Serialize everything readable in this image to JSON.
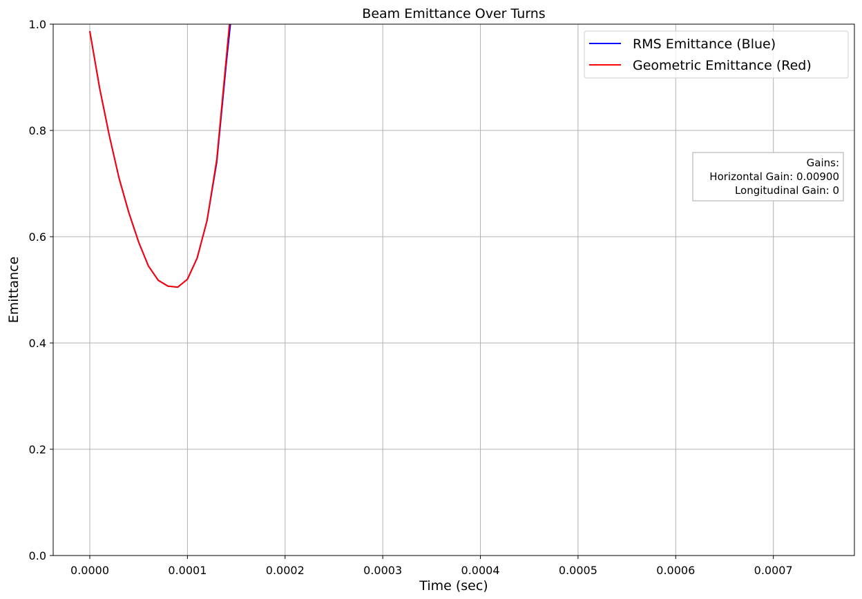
{
  "chart_data": {
    "type": "line",
    "title": "Beam Emittance Over Turns",
    "xlabel": "Time (sec)",
    "ylabel": "Emittance",
    "xlim": [
      -3.75e-05,
      0.000783
    ],
    "ylim": [
      0,
      1
    ],
    "x_ticks": [
      "0.0000",
      "0.0001",
      "0.0002",
      "0.0003",
      "0.0004",
      "0.0005",
      "0.0006",
      "0.0007"
    ],
    "x_tick_values": [
      0,
      0.0001,
      0.0002,
      0.0003,
      0.0004,
      0.0005,
      0.0006,
      0.0007
    ],
    "y_ticks": [
      "0.0",
      "0.2",
      "0.4",
      "0.6",
      "0.8",
      "1.0"
    ],
    "y_tick_values": [
      0,
      0.2,
      0.4,
      0.6,
      0.8,
      1.0
    ],
    "grid": true,
    "legend_position": "top-right",
    "series": [
      {
        "name": "RMS Emittance (Blue)",
        "color": "#0000ff",
        "x": [
          0,
          1e-05,
          2e-05,
          3e-05,
          4e-05,
          5e-05,
          6e-05,
          7e-05,
          8e-05,
          9e-05,
          0.0001,
          0.00011,
          0.00012,
          0.00013,
          0.00014,
          0.000144
        ],
        "y": [
          0.987,
          0.88,
          0.79,
          0.71,
          0.645,
          0.59,
          0.545,
          0.518,
          0.507,
          0.505,
          0.52,
          0.56,
          0.63,
          0.74,
          0.93,
          1.0
        ]
      },
      {
        "name": "Geometric Emittance (Red)",
        "color": "#ff0000",
        "x": [
          0,
          1e-05,
          2e-05,
          3e-05,
          4e-05,
          5e-05,
          6e-05,
          7e-05,
          8e-05,
          9e-05,
          0.0001,
          0.00011,
          0.00012,
          0.00013,
          0.00014,
          0.000143
        ],
        "y": [
          0.987,
          0.88,
          0.79,
          0.71,
          0.645,
          0.59,
          0.545,
          0.518,
          0.507,
          0.505,
          0.52,
          0.56,
          0.63,
          0.745,
          0.94,
          1.0
        ]
      }
    ],
    "annotation": {
      "lines": [
        "Gains:",
        "Horizontal Gain: 0.00900",
        "Longitudinal Gain: 0"
      ]
    }
  }
}
